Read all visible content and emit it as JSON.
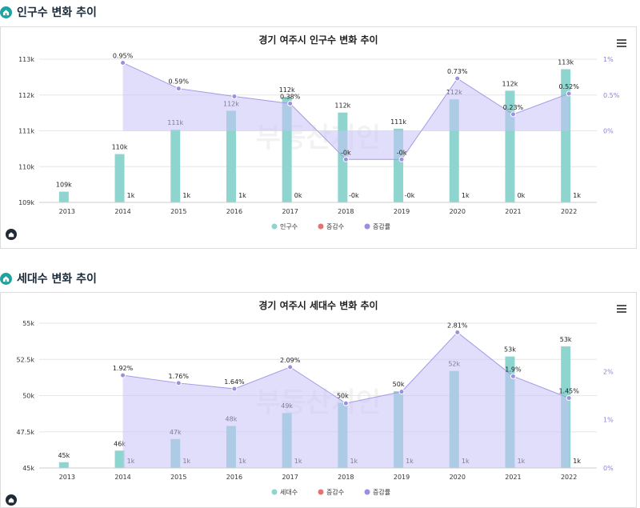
{
  "sections": [
    {
      "heading": "인구수 변화 추이",
      "chart_title": "경기 여주시 인구수 변화 추이",
      "watermark": "부동산지인",
      "legend": [
        "인구수",
        "증감수",
        "증감률"
      ]
    },
    {
      "heading": "세대수 변화 추이",
      "chart_title": "경기 여주시 세대수 변화 추이",
      "watermark": "부동산지인",
      "legend": [
        "세대수",
        "증감수",
        "증감률"
      ]
    }
  ],
  "colors": {
    "bar": "#8fd5cf",
    "overlay_area": "#c9c3f7",
    "rate_line": "#a49ae8",
    "rate_point": "#9a90e0",
    "change_legend": "#e57373",
    "axis_right": "#8b7fe0"
  },
  "icons": {
    "section": "home-icon",
    "menu": "hamburger-menu-icon",
    "logo": "brand-logo-icon"
  },
  "chart_data": [
    {
      "type": "bar",
      "title": "경기 여주시 인구수 변화 추이",
      "categories": [
        "2013",
        "2014",
        "2015",
        "2016",
        "2017",
        "2018",
        "2019",
        "2020",
        "2021",
        "2022"
      ],
      "series": [
        {
          "name": "인구수",
          "type": "bar",
          "values": [
            109300,
            110350,
            111030,
            111560,
            111950,
            111510,
            111060,
            111880,
            112120,
            112720
          ],
          "labels": [
            "109k",
            "110k",
            "111k",
            "112k",
            "112k",
            "112k",
            "111k",
            "112k",
            "112k",
            "113k"
          ]
        },
        {
          "name": "증감수",
          "type": "text",
          "labels": [
            "",
            "1k",
            "1k",
            "1k",
            "0k",
            "-0k",
            "-0k",
            "1k",
            "0k",
            "1k"
          ]
        },
        {
          "name": "증감률",
          "type": "area",
          "values": [
            null,
            0.95,
            0.59,
            0.48,
            0.38,
            -0.4,
            -0.4,
            0.73,
            0.23,
            0.52
          ],
          "labels": [
            "",
            "0.95%",
            "0.59%",
            "",
            "0.38%",
            "-0k",
            "-0k",
            "0.73%",
            "0.23%",
            "0.52%"
          ]
        }
      ],
      "y_left": {
        "min": 109000,
        "max": 113000,
        "ticks": [
          109000,
          110000,
          111000,
          112000,
          113000
        ],
        "tick_labels": [
          "109k",
          "110k",
          "111k",
          "112k",
          "113k"
        ]
      },
      "y_right": {
        "min": -1,
        "max": 1,
        "ticks": [
          0,
          0.5,
          1
        ],
        "tick_labels": [
          "0%",
          "0.5%",
          "1%"
        ]
      },
      "grid": true,
      "legend_position": "bottom"
    },
    {
      "type": "bar",
      "title": "경기 여주시 세대수 변화 추이",
      "categories": [
        "2013",
        "2014",
        "2015",
        "2016",
        "2017",
        "2018",
        "2019",
        "2020",
        "2021",
        "2022"
      ],
      "series": [
        {
          "name": "세대수",
          "type": "bar",
          "values": [
            45400,
            46200,
            47000,
            47900,
            48800,
            49500,
            50300,
            51700,
            52700,
            53400
          ],
          "labels": [
            "45k",
            "46k",
            "47k",
            "48k",
            "49k",
            "50k",
            "50k",
            "52k",
            "53k",
            "53k"
          ]
        },
        {
          "name": "증감수",
          "type": "text",
          "labels": [
            "",
            "1k",
            "1k",
            "1k",
            "1k",
            "1k",
            "1k",
            "1k",
            "1k",
            "1k"
          ]
        },
        {
          "name": "증감률",
          "type": "area",
          "values": [
            null,
            1.92,
            1.76,
            1.64,
            2.09,
            1.34,
            1.58,
            2.81,
            1.9,
            1.45
          ],
          "labels": [
            "",
            "1.92%",
            "1.76%",
            "1.64%",
            "2.09%",
            "",
            "",
            "2.81%",
            "1.9%",
            "1.45%"
          ]
        }
      ],
      "y_left": {
        "min": 45000,
        "max": 55000,
        "ticks": [
          45000,
          47500,
          50000,
          52500,
          55000
        ],
        "tick_labels": [
          "45k",
          "47.5k",
          "50k",
          "52.5k",
          "55k"
        ]
      },
      "y_right": {
        "min": 0,
        "max": 3,
        "ticks": [
          0,
          1,
          2
        ],
        "tick_labels": [
          "0%",
          "1%",
          "2%"
        ]
      },
      "grid": true,
      "legend_position": "bottom"
    }
  ]
}
